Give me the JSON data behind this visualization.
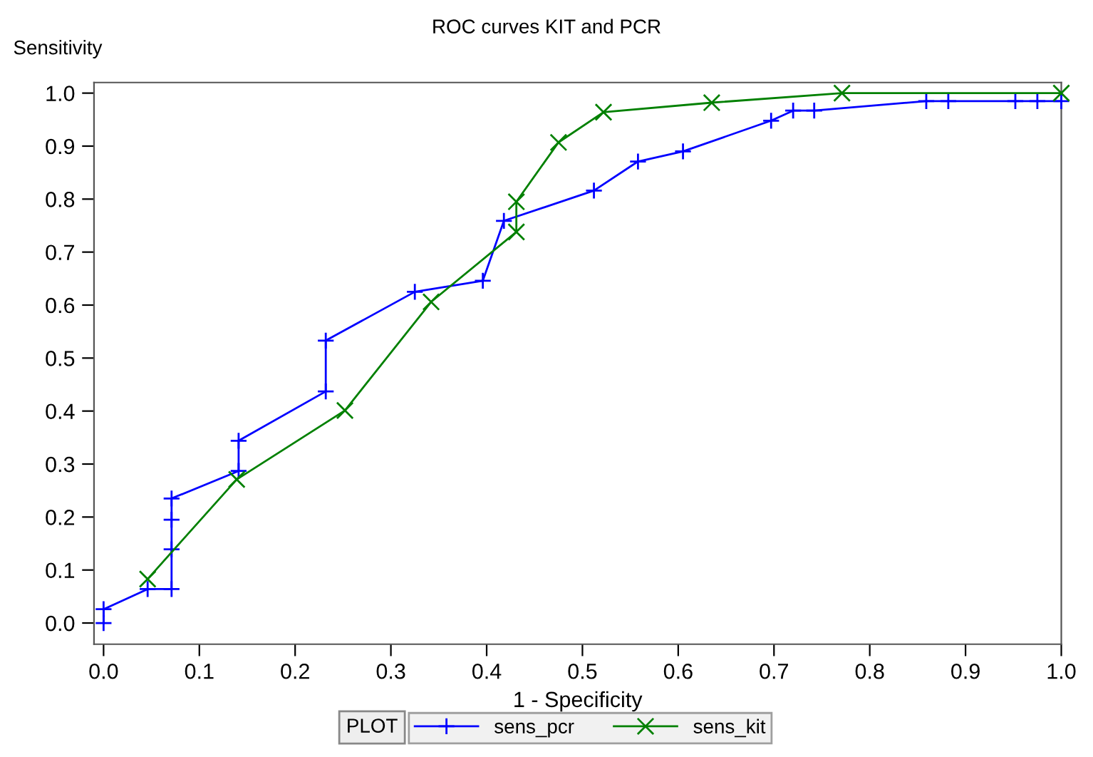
{
  "chart_data": {
    "type": "line",
    "title": "ROC curves KIT and PCR",
    "xlabel": "1 - Specificity",
    "ylabel": "Sensitivity",
    "legend_title": "PLOT",
    "legend": "bottom",
    "grid": false,
    "xlim": [
      -0.01,
      1.0
    ],
    "ylim": [
      -0.04,
      1.02
    ],
    "xticks": [
      {
        "value": 0,
        "label": "0.0"
      },
      0.1,
      0.2,
      0.3,
      0.4,
      0.5,
      0.6,
      0.7,
      0.8,
      0.9,
      {
        "value": 1,
        "label": "1.0"
      }
    ],
    "yticks": [
      {
        "value": 0,
        "label": "0.0"
      },
      0.1,
      0.2,
      0.3,
      0.4,
      0.5,
      0.6,
      0.7,
      0.8,
      0.9,
      {
        "value": 1,
        "label": "1.0"
      }
    ],
    "series": [
      {
        "name": "sens_pcr",
        "color": "#0000ff",
        "marker": "plus",
        "x": [
          0,
          0,
          0.046,
          0.071,
          0.071,
          0.071,
          0.071,
          0.141,
          0.141,
          0.232,
          0.232,
          0.325,
          0.396,
          0.418,
          0.512,
          0.558,
          0.605,
          0.697,
          0.72,
          0.742,
          0.859,
          0.882,
          0.952,
          0.975,
          1.0
        ],
        "values": [
          0,
          0.026,
          0.064,
          0.064,
          0.139,
          0.195,
          0.235,
          0.287,
          0.344,
          0.437,
          0.533,
          0.625,
          0.646,
          0.759,
          0.816,
          0.871,
          0.89,
          0.948,
          0.967,
          0.967,
          0.985,
          0.985,
          0.985,
          0.985,
          0.985
        ]
      },
      {
        "name": "sens_kit",
        "color": "#008000",
        "marker": "cross",
        "x": [
          0.046,
          0.139,
          0.252,
          0.342,
          0.431,
          0.431,
          0.475,
          0.522,
          0.635,
          0.771,
          1.0
        ],
        "values": [
          0.083,
          0.271,
          0.401,
          0.606,
          0.738,
          0.795,
          0.907,
          0.964,
          0.982,
          1.0,
          1.0
        ]
      }
    ]
  }
}
